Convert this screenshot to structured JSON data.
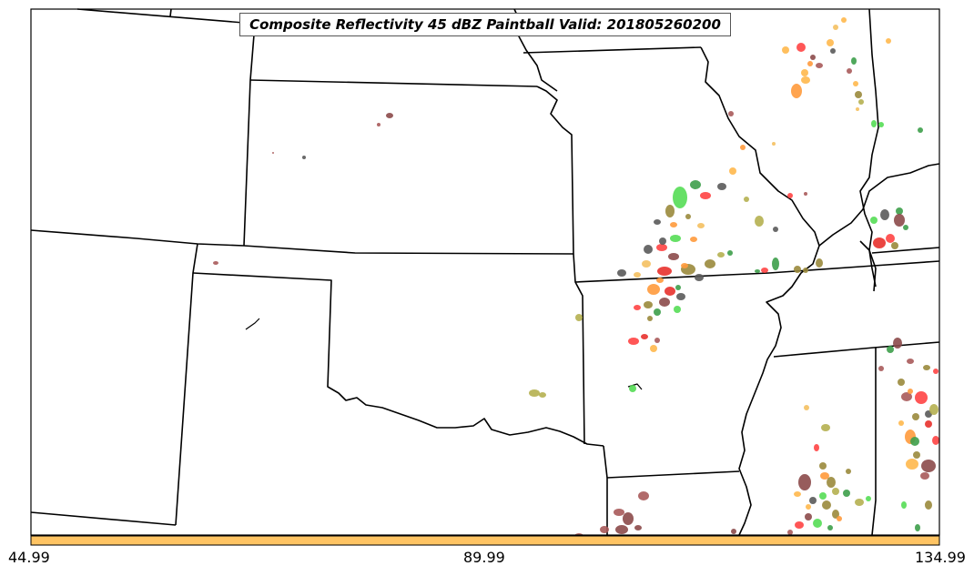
{
  "title": "Composite Reflectivity 45 dBZ Paintball Valid: 201805260200",
  "colorbar": {
    "color": "#ffc463",
    "ticks": [
      "44.99",
      "89.99",
      "134.99"
    ]
  },
  "member_colors": [
    "#ff4444",
    "#e8312c",
    "#ff9a3c",
    "#ffb84d",
    "#f4c060",
    "#3d9e4a",
    "#55dd55",
    "#9a8a3c",
    "#b5b050",
    "#5a5a5a",
    "#8c4a4a",
    "#a85a5a"
  ]
}
